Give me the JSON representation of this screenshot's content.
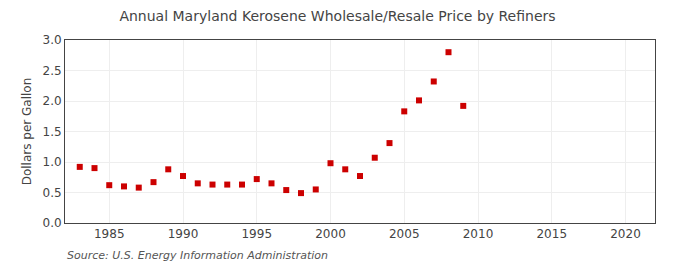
{
  "chart_data": {
    "type": "scatter",
    "title": "Annual Maryland Kerosene Wholesale/Resale Price by Refiners",
    "ylabel": "Dollars per Gallon",
    "annotations": [
      "Source: U.S. Energy Information Administration"
    ],
    "x": [
      1983,
      1984,
      1985,
      1986,
      1987,
      1988,
      1989,
      1990,
      1991,
      1992,
      1993,
      1994,
      1995,
      1996,
      1997,
      1998,
      1999,
      2000,
      2001,
      2002,
      2003,
      2004,
      2005,
      2006,
      2007,
      2008,
      2009
    ],
    "values": [
      0.92,
      0.9,
      0.62,
      0.6,
      0.58,
      0.67,
      0.88,
      0.77,
      0.65,
      0.63,
      0.63,
      0.63,
      0.72,
      0.65,
      0.54,
      0.49,
      0.55,
      0.98,
      0.88,
      0.77,
      1.07,
      1.31,
      1.83,
      2.01,
      2.32,
      2.8,
      1.92
    ],
    "color": "#cc0000",
    "marker": "square",
    "xlim": [
      1982,
      2022
    ],
    "ylim": [
      0.0,
      3.0
    ],
    "xticks": [
      1985,
      1990,
      1995,
      2000,
      2005,
      2010,
      2015,
      2020
    ],
    "yticks": [
      {
        "value": 0.0,
        "label": "0.0"
      },
      0.5,
      {
        "value": 1.0,
        "label": "1.0"
      },
      1.5,
      {
        "value": 2.0,
        "label": "2.0"
      },
      2.5,
      {
        "value": 3.0,
        "label": "3.0"
      }
    ],
    "grid": true
  }
}
